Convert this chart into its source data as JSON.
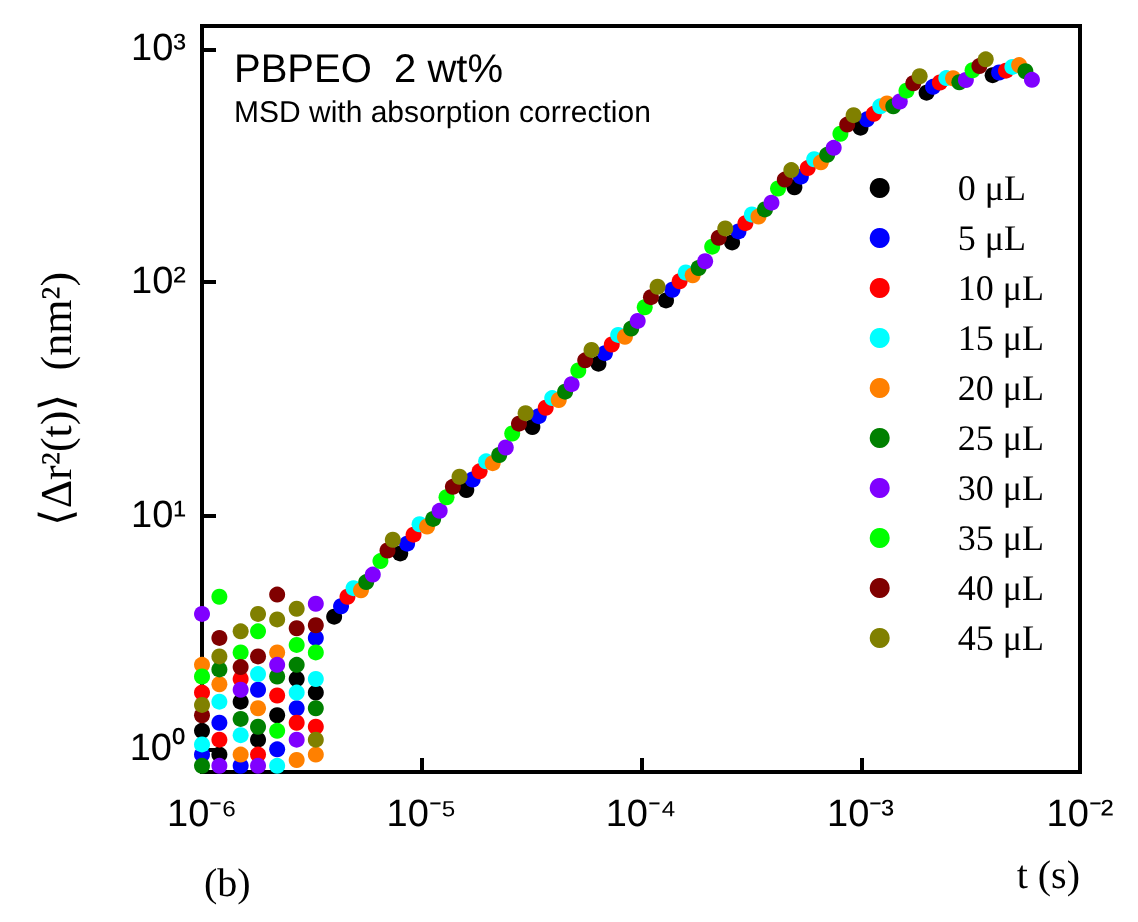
{
  "chart_data": {
    "type": "scatter",
    "title": "PBPEO  2 wt%",
    "subtitle": "MSD with absorption correction",
    "xlabel": "t (s)",
    "ylabel": "⟨Δr²(t)⟩  (nm²)",
    "annotations": [
      "(b)"
    ],
    "log": "xy",
    "grid": false,
    "legend": "right",
    "marker": "circle",
    "xlim": [
      1e-06,
      0.01
    ],
    "xticks": [
      {
        "value": 1e-06,
        "label": "10⁻⁶"
      },
      {
        "value": 1e-05,
        "label": "10⁻⁵"
      },
      {
        "value": 0.0001,
        "label": "10⁻⁴"
      },
      {
        "value": 0.001,
        "label": "10⁻³"
      },
      {
        "value": 0.01,
        "label": "10⁻²"
      }
    ],
    "ylim": [
      0.8,
      1250
    ],
    "yticks": [
      {
        "value": 1,
        "label": "10⁰"
      },
      {
        "value": 10,
        "label": "10¹"
      },
      {
        "value": 100,
        "label": "10²"
      },
      {
        "value": 1000,
        "label": "10³"
      }
    ],
    "series": [
      {
        "name": "0 μL",
        "color": "#000000",
        "x": [
          1e-06,
          1.2e-06,
          1.5e-06,
          1.8e-06,
          2.2e-06,
          2.7e-06,
          3.3e-06,
          4e-06,
          8e-06,
          1.6e-05,
          3.2e-05,
          6.4e-05,
          0.00013,
          0.00026,
          0.0005,
          0.001,
          0.002,
          0.004
        ],
        "values": [
          1.2,
          0.95,
          1.6,
          1.1,
          1.4,
          2.0,
          1.75,
          3.7,
          6.9,
          12.9,
          24,
          44.8,
          83.6,
          148,
          255,
          459,
          648,
          770
        ]
      },
      {
        "name": "5 μL",
        "color": "#0000ff",
        "x": [
          1e-06,
          1.2e-06,
          1.5e-06,
          1.8e-06,
          2.2e-06,
          2.7e-06,
          3.3e-06,
          4.3e-06,
          8.6e-06,
          1.71e-05,
          3.42e-05,
          6.85e-05,
          0.000139,
          0.000278,
          0.000535,
          0.00107,
          0.00214,
          0.00428
        ],
        "values": [
          0.95,
          1.3,
          0.85,
          1.8,
          1.0,
          1.5,
          3.0,
          4.1,
          7.6,
          14.3,
          26.7,
          49.7,
          92.8,
          165,
          283,
          498,
          686,
          790
        ]
      },
      {
        "name": "10 μL",
        "color": "#ff0000",
        "x": [
          1e-06,
          1.2e-06,
          1.5e-06,
          1.8e-06,
          2.2e-06,
          2.7e-06,
          3.3e-06,
          4.6e-06,
          9.2e-06,
          1.84e-05,
          3.68e-05,
          7.36e-05,
          0.00015,
          0.000299,
          0.000575,
          0.00115,
          0.0023,
          0.0046
        ],
        "values": [
          1.75,
          1.1,
          2.0,
          0.95,
          1.7,
          1.3,
          1.25,
          4.5,
          8.3,
          15.5,
          29,
          54.1,
          101,
          179,
          308,
          526,
          716,
          805
        ]
      },
      {
        "name": "15 μL",
        "color": "#00ffff",
        "x": [
          1e-06,
          1.2e-06,
          1.5e-06,
          1.8e-06,
          2.2e-06,
          2.7e-06,
          3.3e-06,
          4.9e-06,
          9.8e-06,
          1.97e-05,
          3.94e-05,
          7.87e-05,
          0.00016,
          0.00032,
          0.000615,
          0.00123,
          0.00246,
          0.00492
        ],
        "values": [
          1.05,
          1.6,
          1.15,
          2.1,
          0.85,
          1.75,
          2.0,
          4.9,
          9.2,
          17.1,
          31.9,
          59.5,
          110,
          195,
          336,
          566,
          748,
          835
        ]
      },
      {
        "name": "20 μL",
        "color": "#ff8000",
        "x": [
          1e-06,
          1.2e-06,
          1.5e-06,
          1.8e-06,
          2.2e-06,
          2.7e-06,
          3.3e-06,
          5.3e-06,
          1.06e-05,
          2.11e-05,
          4.22e-05,
          8.45e-05,
          0.000172,
          0.000343,
          0.00066,
          0.00132,
          0.00264,
          0.00528
        ],
        "values": [
          2.3,
          1.9,
          0.95,
          1.5,
          2.6,
          0.9,
          0.95,
          4.8,
          9.0,
          16.8,
          31.3,
          58.4,
          107,
          191,
          326,
          582,
          747,
          850
        ]
      },
      {
        "name": "25 μL",
        "color": "#008000",
        "x": [
          1e-06,
          1.2e-06,
          1.5e-06,
          1.8e-06,
          2.2e-06,
          2.7e-06,
          3.3e-06,
          5.6e-06,
          1.13e-05,
          2.26e-05,
          4.51e-05,
          9.02e-05,
          0.000183,
          0.000367,
          0.000705,
          0.00141,
          0.00282,
          0.00564
        ],
        "values": [
          0.85,
          2.2,
          1.35,
          1.25,
          2.05,
          2.3,
          1.5,
          5.2,
          9.7,
          18.2,
          34,
          63.3,
          115,
          205,
          351,
          566,
          718,
          800
        ]
      },
      {
        "name": "30 μL",
        "color": "#8000ff",
        "x": [
          1e-06,
          1.2e-06,
          1.5e-06,
          1.8e-06,
          2.2e-06,
          2.7e-06,
          3.3e-06,
          6e-06,
          1.21e-05,
          2.42e-05,
          4.83e-05,
          9.66e-05,
          0.000196,
          0.000393,
          0.000755,
          0.00151,
          0.00302,
          0.00604
        ],
        "values": [
          3.8,
          0.85,
          1.8,
          0.85,
          2.3,
          1.1,
          4.2,
          5.6,
          10.5,
          19.6,
          36.6,
          68.3,
          123,
          219,
          376,
          594,
          734,
          735
        ]
      },
      {
        "name": "35 μL",
        "color": "#00ff00",
        "x": [
          1e-06,
          1.2e-06,
          1.5e-06,
          1.8e-06,
          2.2e-06,
          2.7e-06,
          3.3e-06,
          6.5e-06,
          1.3e-05,
          2.59e-05,
          5.18e-05,
          0.000104,
          0.000211,
          0.000421,
          0.00081,
          0.00162,
          0.00324
        ],
        "values": [
          2.05,
          4.5,
          2.6,
          3.2,
          1.2,
          2.8,
          2.6,
          6.4,
          12,
          22.5,
          41.9,
          78.1,
          142,
          252,
          432,
          661,
          808
        ]
      },
      {
        "name": "40 μL",
        "color": "#800000",
        "x": [
          1e-06,
          1.2e-06,
          1.5e-06,
          1.8e-06,
          2.2e-06,
          2.7e-06,
          3.3e-06,
          7e-06,
          1.39e-05,
          2.78e-05,
          5.57e-05,
          0.000111,
          0.000226,
          0.000452,
          0.00087,
          0.00174,
          0.00348
        ],
        "values": [
          1.4,
          3.0,
          2.25,
          2.5,
          4.6,
          3.3,
          3.4,
          7.1,
          13.3,
          24.8,
          46.3,
          86.3,
          155,
          275,
          473,
          711,
          842
        ]
      },
      {
        "name": "45 μL",
        "color": "#808000",
        "x": [
          1e-06,
          1.2e-06,
          1.5e-06,
          1.8e-06,
          2.2e-06,
          2.7e-06,
          3.3e-06,
          7.4e-06,
          1.49e-05,
          2.98e-05,
          5.95e-05,
          0.000119,
          0.000242,
          0.000484,
          0.00093,
          0.00186,
          0.00372
        ],
        "values": [
          1.55,
          2.5,
          3.2,
          3.8,
          3.6,
          4.0,
          1.1,
          7.9,
          14.7,
          27.5,
          51.3,
          95.6,
          170,
          302,
          519,
          762,
          900
        ]
      }
    ]
  }
}
